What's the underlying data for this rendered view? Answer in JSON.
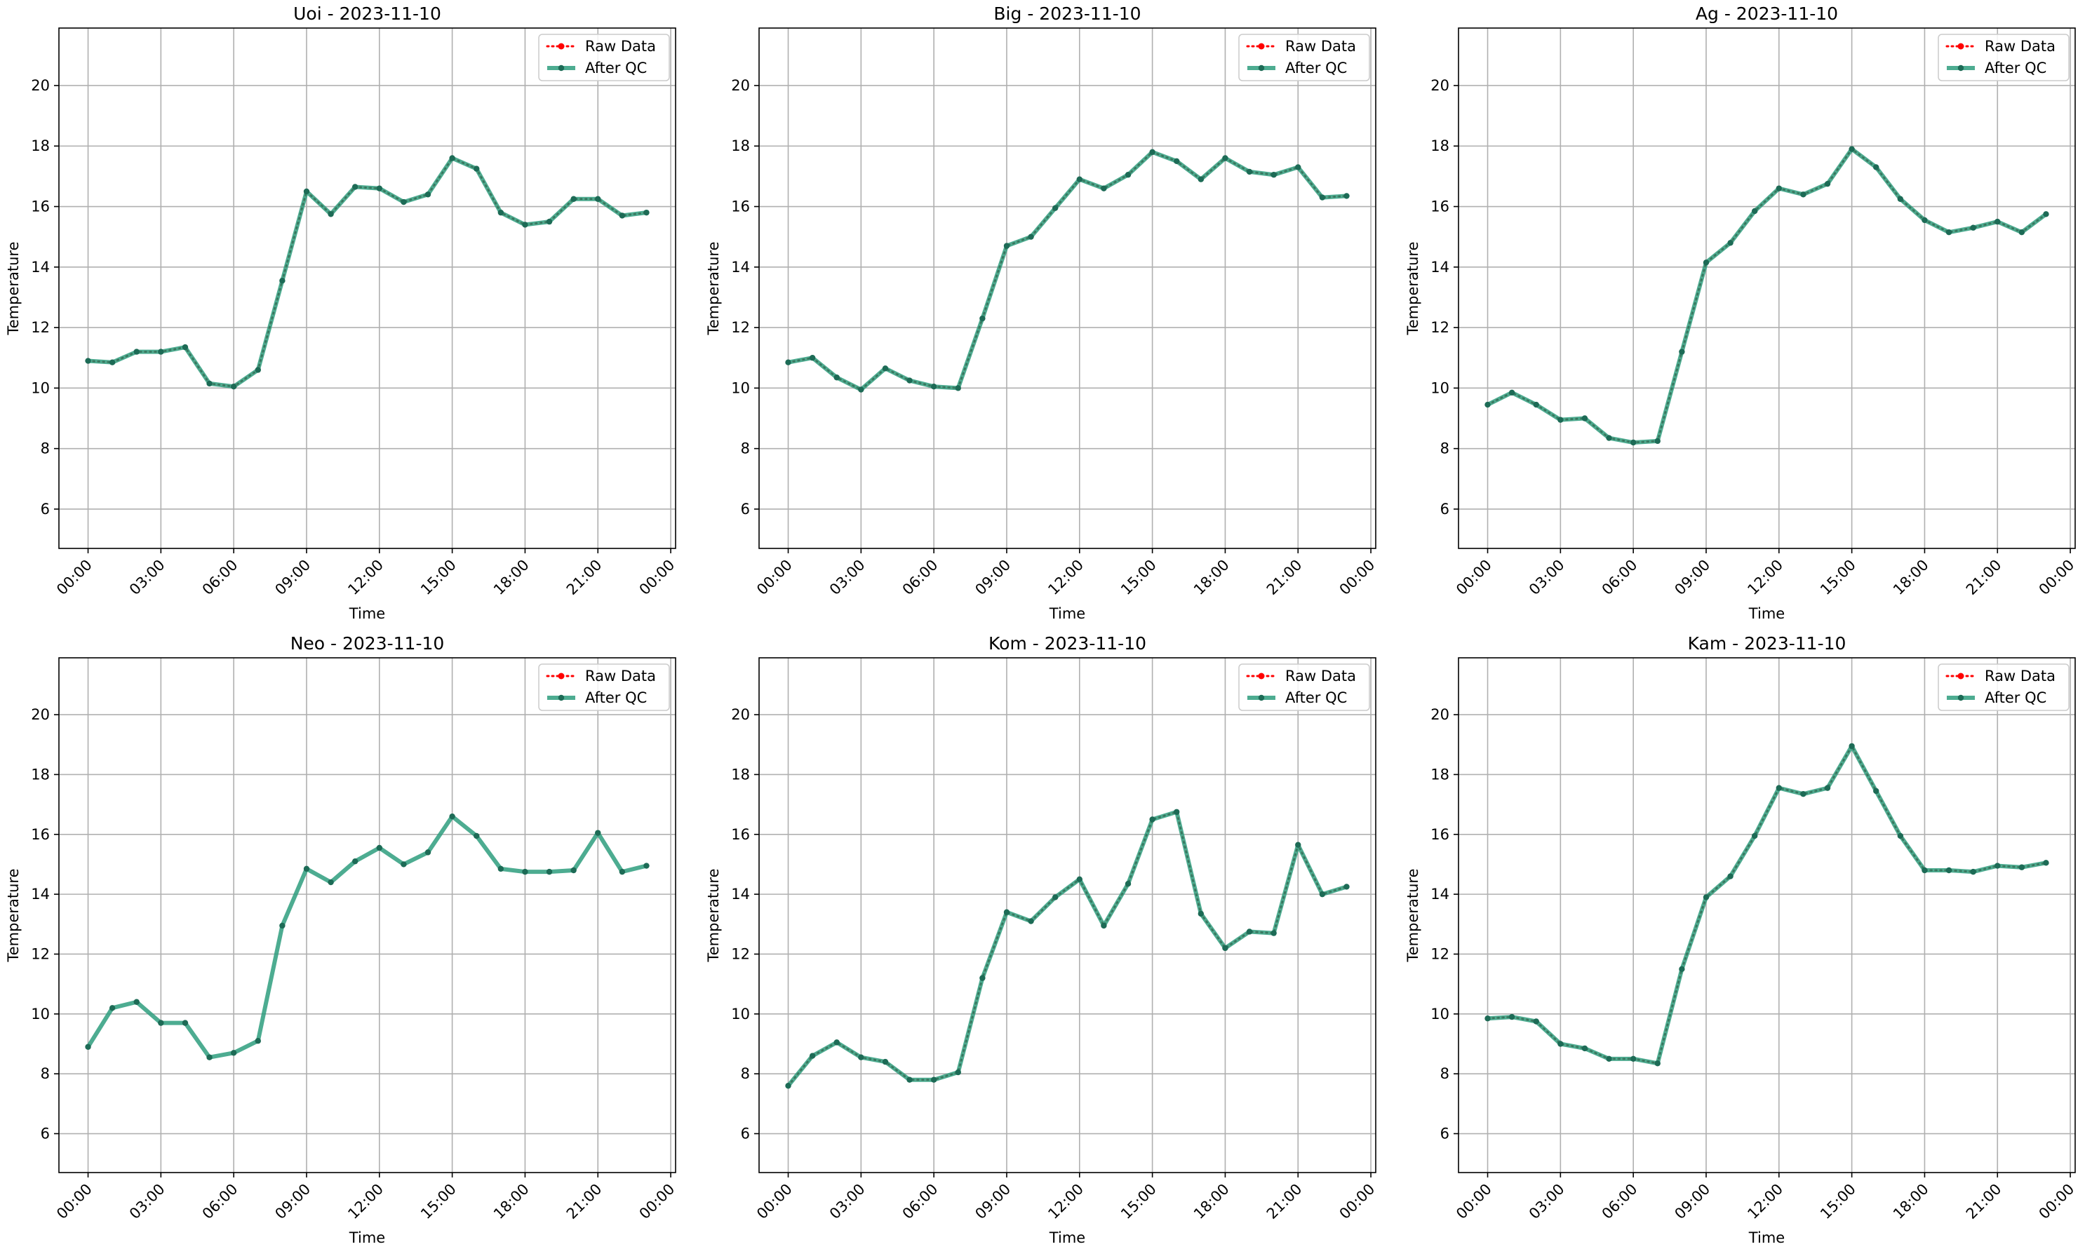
{
  "colors": {
    "raw": "#ff0000",
    "qc": "#2e9e7e",
    "qc_marker": "#1d6b56",
    "grid": "#b0b0b0",
    "axis": "#000000"
  },
  "chart_data": [
    {
      "type": "line",
      "title": "Uoi - 2023-11-10",
      "xlabel": "Time",
      "ylabel": "Temperature",
      "x_ticks": [
        "00:00",
        "03:00",
        "06:00",
        "09:00",
        "12:00",
        "15:00",
        "18:00",
        "21:00",
        "00:00"
      ],
      "y_ticks": [
        6,
        8,
        10,
        12,
        14,
        16,
        18,
        20
      ],
      "xlim_hours": [
        -1.2,
        24.2
      ],
      "ylim": [
        4.7,
        21.9
      ],
      "grid": true,
      "legend": "top-right",
      "x_hours": [
        0,
        1,
        2,
        3,
        4,
        5,
        6,
        7,
        8,
        9,
        10,
        11,
        12,
        13,
        14,
        15,
        16,
        17,
        18,
        19,
        20,
        21,
        22,
        23
      ],
      "series": [
        {
          "name": "Raw Data",
          "style": "raw",
          "values": [
            10.9,
            10.85,
            11.2,
            11.2,
            11.35,
            10.15,
            10.05,
            10.6,
            13.55,
            16.5,
            15.75,
            16.65,
            16.6,
            16.15,
            16.4,
            17.6,
            17.25,
            15.8,
            15.4,
            15.5,
            16.25,
            16.25,
            15.7,
            15.8
          ]
        },
        {
          "name": "After QC",
          "style": "qc",
          "values": [
            10.9,
            10.85,
            11.2,
            11.2,
            11.35,
            10.15,
            10.05,
            10.6,
            13.55,
            16.5,
            15.75,
            16.65,
            16.6,
            16.15,
            16.4,
            17.6,
            17.25,
            15.8,
            15.4,
            15.5,
            16.25,
            16.25,
            15.7,
            15.8
          ]
        }
      ]
    },
    {
      "type": "line",
      "title": "Big - 2023-11-10",
      "xlabel": "Time",
      "ylabel": "Temperature",
      "x_ticks": [
        "00:00",
        "03:00",
        "06:00",
        "09:00",
        "12:00",
        "15:00",
        "18:00",
        "21:00",
        "00:00"
      ],
      "y_ticks": [
        6,
        8,
        10,
        12,
        14,
        16,
        18,
        20
      ],
      "xlim_hours": [
        -1.2,
        24.2
      ],
      "ylim": [
        4.7,
        21.9
      ],
      "grid": true,
      "legend": "top-right",
      "x_hours": [
        0,
        1,
        2,
        3,
        4,
        5,
        6,
        7,
        8,
        9,
        10,
        11,
        12,
        13,
        14,
        15,
        16,
        17,
        18,
        19,
        20,
        21,
        22,
        23
      ],
      "series": [
        {
          "name": "Raw Data",
          "style": "raw",
          "values": [
            10.85,
            11.0,
            10.35,
            9.95,
            10.65,
            10.25,
            10.05,
            10.0,
            12.3,
            14.7,
            15.0,
            15.95,
            16.9,
            16.6,
            17.05,
            17.8,
            17.5,
            16.9,
            17.6,
            17.15,
            17.05,
            17.3,
            16.3,
            16.35
          ]
        },
        {
          "name": "After QC",
          "style": "qc",
          "values": [
            10.85,
            11.0,
            10.35,
            9.95,
            10.65,
            10.25,
            10.05,
            10.0,
            12.3,
            14.7,
            15.0,
            15.95,
            16.9,
            16.6,
            17.05,
            17.8,
            17.5,
            16.9,
            17.6,
            17.15,
            17.05,
            17.3,
            16.3,
            16.35
          ]
        }
      ]
    },
    {
      "type": "line",
      "title": "Ag - 2023-11-10",
      "xlabel": "Time",
      "ylabel": "Temperature",
      "x_ticks": [
        "00:00",
        "03:00",
        "06:00",
        "09:00",
        "12:00",
        "15:00",
        "18:00",
        "21:00",
        "00:00"
      ],
      "y_ticks": [
        6,
        8,
        10,
        12,
        14,
        16,
        18,
        20
      ],
      "xlim_hours": [
        -1.2,
        24.2
      ],
      "ylim": [
        4.7,
        21.9
      ],
      "grid": true,
      "legend": "top-right",
      "x_hours": [
        0,
        1,
        2,
        3,
        4,
        5,
        6,
        7,
        8,
        9,
        10,
        11,
        12,
        13,
        14,
        15,
        16,
        17,
        18,
        19,
        20,
        21,
        22,
        23
      ],
      "series": [
        {
          "name": "Raw Data",
          "style": "raw",
          "values": [
            9.45,
            9.85,
            9.45,
            8.95,
            9.0,
            8.35,
            8.2,
            8.25,
            11.2,
            14.15,
            14.8,
            15.85,
            16.6,
            16.4,
            16.75,
            17.9,
            17.3,
            16.25,
            15.55,
            15.15,
            15.3,
            15.5,
            15.15,
            15.75
          ]
        },
        {
          "name": "After QC",
          "style": "qc",
          "values": [
            9.45,
            9.85,
            9.45,
            8.95,
            9.0,
            8.35,
            8.2,
            8.25,
            11.2,
            14.15,
            14.8,
            15.85,
            16.6,
            16.4,
            16.75,
            17.9,
            17.3,
            16.25,
            15.55,
            15.15,
            15.3,
            15.5,
            15.15,
            15.75
          ]
        }
      ]
    },
    {
      "type": "line",
      "title": "Neo - 2023-11-10",
      "xlabel": "Time",
      "ylabel": "Temperature",
      "x_ticks": [
        "00:00",
        "03:00",
        "06:00",
        "09:00",
        "12:00",
        "15:00",
        "18:00",
        "21:00",
        "00:00"
      ],
      "y_ticks": [
        6,
        8,
        10,
        12,
        14,
        16,
        18,
        20
      ],
      "xlim_hours": [
        -1.2,
        24.2
      ],
      "ylim": [
        4.7,
        21.9
      ],
      "grid": true,
      "legend": "top-right",
      "x_hours": [
        0,
        1,
        2,
        3,
        4,
        5,
        6,
        7,
        8,
        9,
        10,
        11,
        12,
        13,
        14,
        15,
        16,
        17,
        18,
        19,
        20,
        21,
        22,
        23
      ],
      "series": [
        {
          "name": "Raw Data",
          "style": "raw",
          "values": []
        },
        {
          "name": "After QC",
          "style": "qc",
          "values": [
            8.9,
            10.2,
            10.4,
            9.7,
            9.7,
            8.55,
            8.7,
            9.1,
            12.95,
            14.85,
            14.4,
            15.1,
            15.55,
            15.0,
            15.4,
            16.6,
            15.95,
            14.85,
            14.75,
            14.75,
            14.8,
            16.05,
            14.75,
            14.95
          ]
        }
      ]
    },
    {
      "type": "line",
      "title": "Kom - 2023-11-10",
      "xlabel": "Time",
      "ylabel": "Temperature",
      "x_ticks": [
        "00:00",
        "03:00",
        "06:00",
        "09:00",
        "12:00",
        "15:00",
        "18:00",
        "21:00",
        "00:00"
      ],
      "y_ticks": [
        6,
        8,
        10,
        12,
        14,
        16,
        18,
        20
      ],
      "xlim_hours": [
        -1.2,
        24.2
      ],
      "ylim": [
        4.7,
        21.9
      ],
      "grid": true,
      "legend": "top-right",
      "x_hours": [
        0,
        1,
        2,
        3,
        4,
        5,
        6,
        7,
        8,
        9,
        10,
        11,
        12,
        13,
        14,
        15,
        16,
        17,
        18,
        19,
        20,
        21,
        22,
        23
      ],
      "series": [
        {
          "name": "Raw Data",
          "style": "raw",
          "values": [
            7.6,
            8.6,
            9.05,
            8.55,
            8.4,
            7.8,
            7.8,
            8.05,
            11.2,
            13.4,
            13.1,
            13.9,
            14.5,
            12.95,
            14.35,
            16.5,
            16.75,
            13.35,
            12.2,
            12.75,
            12.7,
            15.65,
            14.0,
            14.25
          ]
        },
        {
          "name": "After QC",
          "style": "qc",
          "values": [
            7.6,
            8.6,
            9.05,
            8.55,
            8.4,
            7.8,
            7.8,
            8.05,
            11.2,
            13.4,
            13.1,
            13.9,
            14.5,
            12.95,
            14.35,
            16.5,
            16.75,
            13.35,
            12.2,
            12.75,
            12.7,
            15.65,
            14.0,
            14.25
          ]
        }
      ]
    },
    {
      "type": "line",
      "title": "Kam - 2023-11-10",
      "xlabel": "Time",
      "ylabel": "Temperature",
      "x_ticks": [
        "00:00",
        "03:00",
        "06:00",
        "09:00",
        "12:00",
        "15:00",
        "18:00",
        "21:00",
        "00:00"
      ],
      "y_ticks": [
        6,
        8,
        10,
        12,
        14,
        16,
        18,
        20
      ],
      "xlim_hours": [
        -1.2,
        24.2
      ],
      "ylim": [
        4.7,
        21.9
      ],
      "grid": true,
      "legend": "top-right",
      "x_hours": [
        0,
        1,
        2,
        3,
        4,
        5,
        6,
        7,
        8,
        9,
        10,
        11,
        12,
        13,
        14,
        15,
        16,
        17,
        18,
        19,
        20,
        21,
        22,
        23
      ],
      "series": [
        {
          "name": "Raw Data",
          "style": "raw",
          "values": [
            9.85,
            9.9,
            9.75,
            9.0,
            8.85,
            8.5,
            8.5,
            8.35,
            11.5,
            13.9,
            14.6,
            15.95,
            17.55,
            17.35,
            17.55,
            18.95,
            17.45,
            15.95,
            14.8,
            14.8,
            14.75,
            14.95,
            14.9,
            15.05
          ]
        },
        {
          "name": "After QC",
          "style": "qc",
          "values": [
            9.85,
            9.9,
            9.75,
            9.0,
            8.85,
            8.5,
            8.5,
            8.35,
            11.5,
            13.9,
            14.6,
            15.95,
            17.55,
            17.35,
            17.55,
            18.95,
            17.45,
            15.95,
            14.8,
            14.8,
            14.75,
            14.95,
            14.9,
            15.05
          ]
        }
      ]
    }
  ]
}
